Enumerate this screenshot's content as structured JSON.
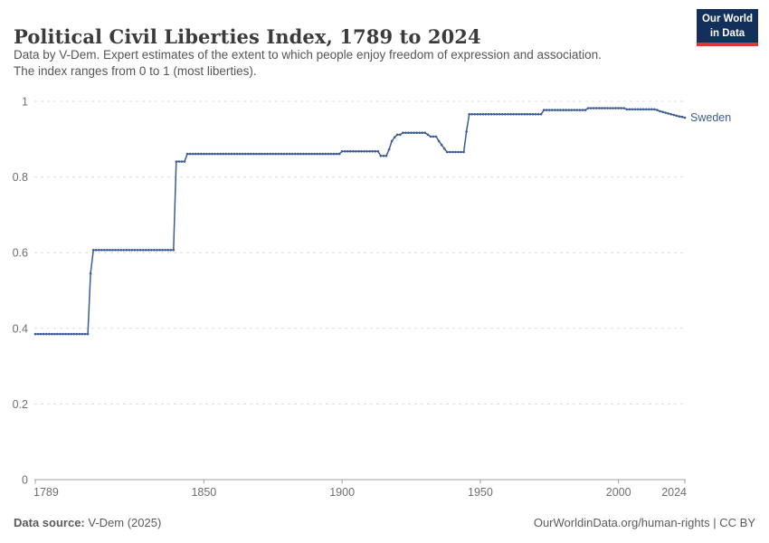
{
  "header": {
    "title": "Political Civil Liberties Index, 1789 to 2024",
    "subtitle_line1": "Data by V-Dem. Expert estimates of the extent to which people enjoy freedom of expression and association.",
    "subtitle_line2": "The index ranges from 0 to 1 (most liberties).",
    "logo_line1": "Our World",
    "logo_line2": "in Data"
  },
  "chart_data": {
    "type": "line",
    "title": "Political Civil Liberties Index, 1789 to 2024",
    "xlabel": "",
    "ylabel": "",
    "xlim": [
      1789,
      2024
    ],
    "ylim": [
      0,
      1
    ],
    "x_ticks": [
      1789,
      1850,
      1900,
      1950,
      2000,
      2024
    ],
    "y_ticks": [
      0,
      0.2,
      0.4,
      0.6,
      0.8,
      1
    ],
    "grid": "horizontal-dashed",
    "legend_position": "end-of-line-label",
    "series": [
      {
        "name": "Sweden",
        "color": "#3d5c94",
        "marker": "dot-every-year",
        "segments_year_start_end_value": [
          [
            1789,
            1808,
            0.385
          ],
          [
            1809,
            1809,
            0.545
          ],
          [
            1810,
            1839,
            0.607
          ],
          [
            1840,
            1843,
            0.841
          ],
          [
            1844,
            1899,
            0.861
          ],
          [
            1900,
            1913,
            0.868
          ],
          [
            1914,
            1916,
            0.856
          ],
          [
            1917,
            1917,
            0.873
          ],
          [
            1918,
            1918,
            0.895
          ],
          [
            1919,
            1919,
            0.905
          ],
          [
            1920,
            1921,
            0.912
          ],
          [
            1922,
            1930,
            0.917
          ],
          [
            1931,
            1931,
            0.912
          ],
          [
            1932,
            1934,
            0.907
          ],
          [
            1935,
            1935,
            0.895
          ],
          [
            1936,
            1936,
            0.885
          ],
          [
            1937,
            1937,
            0.875
          ],
          [
            1938,
            1944,
            0.866
          ],
          [
            1945,
            1945,
            0.92
          ],
          [
            1946,
            1972,
            0.966
          ],
          [
            1973,
            1988,
            0.977
          ],
          [
            1989,
            2002,
            0.982
          ],
          [
            2003,
            2013,
            0.979
          ],
          [
            2014,
            2014,
            0.977
          ],
          [
            2015,
            2015,
            0.974
          ],
          [
            2016,
            2016,
            0.972
          ],
          [
            2017,
            2017,
            0.97
          ],
          [
            2018,
            2018,
            0.968
          ],
          [
            2019,
            2019,
            0.966
          ],
          [
            2020,
            2020,
            0.964
          ],
          [
            2021,
            2021,
            0.962
          ],
          [
            2022,
            2022,
            0.96
          ],
          [
            2023,
            2023,
            0.959
          ],
          [
            2024,
            2024,
            0.957
          ]
        ]
      }
    ]
  },
  "footer": {
    "source_label": "Data source:",
    "source_value": "V-Dem (2025)",
    "rights": "OurWorldinData.org/human-rights | CC BY"
  },
  "colors": {
    "line": "#3d5c94",
    "entity_label": "#3d5c94",
    "grid": "#dedede",
    "axis": "#a0a0a0",
    "tick_text": "#6e6e6e",
    "title_text": "#3b3b3b",
    "subtitle_text": "#555555",
    "footer_text": "#5b5b5b",
    "logo_bg": "#12305a",
    "logo_red": "#d93a34"
  }
}
